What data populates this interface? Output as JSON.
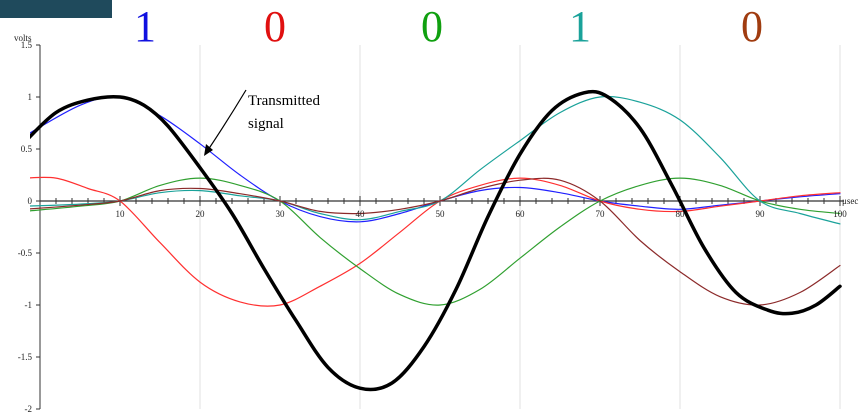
{
  "bits": [
    {
      "value": "1",
      "color": "#1010e0"
    },
    {
      "value": "0",
      "color": "#e01010"
    },
    {
      "value": "0",
      "color": "#10a010"
    },
    {
      "value": "1",
      "color": "#1aa29a"
    },
    {
      "value": "0",
      "color": "#a03c10"
    }
  ],
  "chart_data": {
    "type": "line",
    "ylabel": "volts",
    "xunit": "μsec",
    "xlim": [
      0,
      100
    ],
    "ylim": [
      -2,
      1.5
    ],
    "xticks": [
      10,
      20,
      30,
      40,
      50,
      60,
      70,
      80,
      90,
      100
    ],
    "yticks": [
      1.5,
      1,
      0.5,
      0,
      -0.5,
      -1,
      -1.5,
      -2
    ],
    "xtick_labels": [
      "10",
      "20",
      "30",
      "40",
      "50",
      "60",
      "70",
      "80",
      "90",
      "100"
    ],
    "ytick_labels": [
      "1.5",
      "1",
      "0.5",
      "0",
      "-0.5",
      "-1",
      "-1.5",
      "-2"
    ],
    "annotation": {
      "line1": "Transmitted",
      "line2": "signal"
    },
    "series": [
      {
        "color": "#2020ff",
        "width": 1.2,
        "x": [
          -2,
          5,
          10,
          15,
          20,
          25,
          30,
          35,
          40,
          45,
          50,
          55,
          60,
          65,
          70,
          75,
          80,
          85,
          90,
          95,
          100
        ],
        "y": [
          0.62,
          0.92,
          1.0,
          0.82,
          0.55,
          0.25,
          0.0,
          -0.15,
          -0.2,
          -0.12,
          0.0,
          0.1,
          0.13,
          0.08,
          0.0,
          -0.05,
          -0.08,
          -0.04,
          0.0,
          0.04,
          0.07
        ]
      },
      {
        "color": "#ff3030",
        "width": 1.2,
        "x": [
          -2,
          2,
          6,
          10,
          15,
          20,
          25,
          30,
          35,
          40,
          45,
          50,
          55,
          60,
          65,
          70,
          75,
          80,
          85,
          90,
          95,
          100
        ],
        "y": [
          0.22,
          0.22,
          0.12,
          0.0,
          -0.4,
          -0.78,
          -0.97,
          -1.0,
          -0.82,
          -0.6,
          -0.3,
          0.0,
          0.15,
          0.22,
          0.15,
          0.0,
          -0.08,
          -0.1,
          -0.05,
          0.0,
          0.05,
          0.08
        ]
      },
      {
        "color": "#30a030",
        "width": 1.2,
        "x": [
          -2,
          5,
          10,
          15,
          20,
          25,
          30,
          35,
          40,
          45,
          50,
          55,
          60,
          65,
          70,
          75,
          80,
          85,
          90,
          95,
          100
        ],
        "y": [
          -0.1,
          -0.05,
          0.0,
          0.15,
          0.22,
          0.15,
          0.0,
          -0.35,
          -0.65,
          -0.9,
          -1.0,
          -0.85,
          -0.55,
          -0.25,
          0.0,
          0.15,
          0.22,
          0.15,
          0.0,
          -0.08,
          -0.12
        ]
      },
      {
        "color": "#1aa29a",
        "width": 1.2,
        "x": [
          -2,
          5,
          10,
          15,
          20,
          25,
          30,
          35,
          40,
          45,
          50,
          55,
          60,
          65,
          70,
          75,
          80,
          85,
          90,
          95,
          100
        ],
        "y": [
          -0.05,
          -0.03,
          0.0,
          0.08,
          0.1,
          0.05,
          0.0,
          -0.12,
          -0.18,
          -0.1,
          0.0,
          0.3,
          0.58,
          0.85,
          1.0,
          0.95,
          0.78,
          0.42,
          0.0,
          -0.12,
          -0.22
        ]
      },
      {
        "color": "#8c2a2a",
        "width": 1.2,
        "x": [
          -2,
          5,
          10,
          15,
          20,
          25,
          30,
          35,
          40,
          45,
          50,
          55,
          60,
          65,
          70,
          75,
          80,
          85,
          90,
          95,
          100
        ],
        "y": [
          -0.08,
          -0.04,
          0.0,
          0.1,
          0.12,
          0.07,
          0.0,
          -0.1,
          -0.12,
          -0.08,
          0.0,
          0.12,
          0.2,
          0.2,
          0.0,
          -0.38,
          -0.68,
          -0.92,
          -1.0,
          -0.88,
          -0.62
        ]
      },
      {
        "color": "#000000",
        "width": 3.5,
        "x": [
          -2,
          2,
          6,
          10,
          13,
          16,
          20,
          24,
          28,
          32,
          36,
          40,
          44,
          48,
          52,
          56,
          60,
          64,
          68,
          71,
          75,
          79,
          83,
          87,
          91,
          94,
          97,
          100
        ],
        "y": [
          0.56,
          0.85,
          0.97,
          1.0,
          0.92,
          0.72,
          0.32,
          -0.12,
          -0.65,
          -1.15,
          -1.6,
          -1.8,
          -1.75,
          -1.4,
          -0.85,
          -0.15,
          0.45,
          0.87,
          1.04,
          1.0,
          0.7,
          0.15,
          -0.45,
          -0.88,
          -1.05,
          -1.08,
          -1.0,
          -0.82
        ]
      }
    ]
  }
}
